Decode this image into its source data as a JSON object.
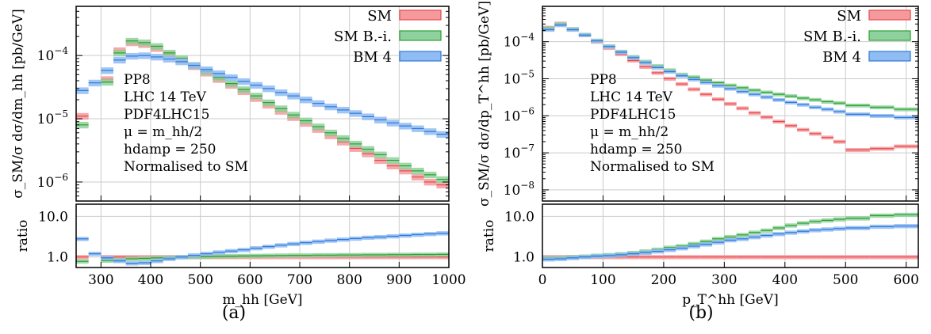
{
  "charts": [
    {
      "id": "a",
      "caption": "(a)",
      "type": "histogram-ratio",
      "xlabel": "m_hh [GeV]",
      "ylabel": "σ_SM/σ dσ/dm_hh [pb/GeV]",
      "ratio_ylabel": "ratio",
      "xlim": [
        250,
        1000
      ],
      "ylim": [
        5e-07,
        0.0006
      ],
      "yscale": "log",
      "ratio_ylim": [
        0.55,
        20
      ],
      "ratio_yscale": "log",
      "x_ticks": [
        "300",
        "400",
        "500",
        "600",
        "700",
        "800",
        "900",
        "1000"
      ],
      "x_tick_values": [
        300,
        400,
        500,
        600,
        700,
        800,
        900,
        1000
      ],
      "y_ticks": [
        {
          "v": 0.0001,
          "base": "10",
          "exp": "−4"
        },
        {
          "v": 1e-05,
          "base": "10",
          "exp": "−5"
        },
        {
          "v": 1e-06,
          "base": "10",
          "exp": "−6"
        }
      ],
      "ratio_ticks": [
        {
          "v": 10,
          "label": "10.0"
        },
        {
          "v": 1,
          "label": "1.0"
        }
      ],
      "info": [
        "PP8",
        "LHC 14 TeV",
        "PDF4LHC15",
        "μ = m_hh/2",
        "hdamp = 250",
        "Normalised to SM"
      ],
      "legend": [
        {
          "label": "SM",
          "color": "#e8474c",
          "fill": "#f49a9c"
        },
        {
          "label": "SM B.-i.",
          "color": "#2ca02c",
          "fill": "#8fd19e"
        },
        {
          "label": "BM 4",
          "color": "#2f78d8",
          "fill": "#8fbcf3"
        }
      ],
      "bin_edges": [
        250,
        275,
        300,
        325,
        350,
        375,
        400,
        425,
        450,
        475,
        500,
        525,
        550,
        575,
        600,
        625,
        650,
        675,
        700,
        725,
        750,
        775,
        800,
        825,
        850,
        875,
        900,
        925,
        950,
        975,
        1000
      ],
      "series": [
        {
          "name": "SM",
          "values": [
            1.1e-05,
            0,
            4.2e-05,
            0.00012,
            0.00016,
            0.00015,
            0.00013,
            0.000105,
            8.5e-05,
            6.7e-05,
            5.3e-05,
            4.2e-05,
            3.4e-05,
            2.7e-05,
            2.1e-05,
            1.65e-05,
            1.32e-05,
            1.05e-05,
            8.5e-06,
            6.8e-06,
            5.4e-06,
            4.3e-06,
            3.4e-06,
            2.8e-06,
            2.2e-06,
            1.8e-06,
            1.5e-06,
            1.2e-06,
            1e-06,
            9e-07
          ]
        },
        {
          "name": "SM B.-i.",
          "values": [
            8e-06,
            0,
            3.8e-05,
            0.00011,
            0.00017,
            0.00016,
            0.00014,
            0.00011,
            9e-05,
            7e-05,
            5.6e-05,
            4.5e-05,
            3.6e-05,
            2.9e-05,
            2.3e-05,
            1.8e-05,
            1.45e-05,
            1.15e-05,
            9.3e-06,
            7.5e-06,
            6e-06,
            4.9e-06,
            4e-06,
            3.3e-06,
            2.7e-06,
            2.2e-06,
            1.8e-06,
            1.5e-06,
            1.3e-06,
            1.1e-06
          ]
        },
        {
          "name": "BM 4",
          "values": [
            2.8e-05,
            3.7e-05,
            5.8e-05,
            8.5e-05,
            9.8e-05,
            0.0001,
            9.5e-05,
            8.8e-05,
            8e-05,
            7e-05,
            6e-05,
            5.2e-05,
            4.5e-05,
            3.9e-05,
            3.4e-05,
            3e-05,
            2.6e-05,
            2.3e-05,
            2e-05,
            1.75e-05,
            1.55e-05,
            1.38e-05,
            1.22e-05,
            1.08e-05,
            9.6e-06,
            8.6e-06,
            7.7e-06,
            7e-06,
            6.3e-06,
            5.7e-06
          ]
        }
      ],
      "ratio_series": [
        {
          "name": "SM",
          "values": [
            1,
            0,
            1,
            1,
            1,
            1,
            1,
            1,
            1,
            1,
            1,
            1,
            1,
            1,
            1,
            1,
            1,
            1,
            1,
            1,
            1,
            1,
            1,
            1,
            1,
            1,
            1,
            1,
            1,
            1
          ]
        },
        {
          "name": "SM B.-i.",
          "values": [
            0.78,
            0,
            0.82,
            0.86,
            0.9,
            0.92,
            0.95,
            0.97,
            0.99,
            1.0,
            1.02,
            1.04,
            1.05,
            1.06,
            1.07,
            1.08,
            1.09,
            1.1,
            1.1,
            1.11,
            1.11,
            1.12,
            1.12,
            1.13,
            1.13,
            1.14,
            1.14,
            1.15,
            1.15,
            1.16
          ]
        },
        {
          "name": "BM 4",
          "values": [
            2.8,
            1.2,
            0.95,
            0.8,
            0.7,
            0.72,
            0.8,
            0.9,
            1.0,
            1.1,
            1.2,
            1.3,
            1.4,
            1.5,
            1.65,
            1.8,
            1.95,
            2.1,
            2.25,
            2.4,
            2.55,
            2.7,
            2.85,
            3.0,
            3.1,
            3.25,
            3.4,
            3.55,
            3.7,
            3.85
          ]
        }
      ]
    },
    {
      "id": "b",
      "caption": "(b)",
      "type": "histogram-ratio",
      "xlabel": "p_T^hh [GeV]",
      "ylabel": "σ_SM/σ dσ/dp_T^hh [pb/GeV]",
      "ratio_ylabel": "ratio",
      "xlim": [
        0,
        620
      ],
      "ylim": [
        5e-09,
        0.0009
      ],
      "yscale": "log",
      "ratio_ylim": [
        0.55,
        20
      ],
      "ratio_yscale": "log",
      "x_ticks": [
        "0",
        "100",
        "200",
        "300",
        "400",
        "500",
        "600"
      ],
      "x_tick_values": [
        0,
        100,
        200,
        300,
        400,
        500,
        600
      ],
      "y_ticks": [
        {
          "v": 0.0001,
          "base": "10",
          "exp": "−4"
        },
        {
          "v": 1e-05,
          "base": "10",
          "exp": "−5"
        },
        {
          "v": 1e-06,
          "base": "10",
          "exp": "−6"
        },
        {
          "v": 1e-07,
          "base": "10",
          "exp": "−7"
        },
        {
          "v": 1e-08,
          "base": "10",
          "exp": "−8"
        }
      ],
      "ratio_ticks": [
        {
          "v": 10,
          "label": "10.0"
        },
        {
          "v": 1,
          "label": "1.0"
        }
      ],
      "info": [
        "PP8",
        "LHC 14 TeV",
        "PDF4LHC15",
        "μ = m_hh/2",
        "hdamp = 250",
        "Normalised to SM"
      ],
      "legend": [
        {
          "label": "SM",
          "color": "#e8474c",
          "fill": "#f49a9c"
        },
        {
          "label": "SM B.-i.",
          "color": "#2ca02c",
          "fill": "#8fd19e"
        },
        {
          "label": "BM 4",
          "color": "#2f78d8",
          "fill": "#8fbcf3"
        }
      ],
      "bin_edges": [
        0,
        20,
        40,
        60,
        80,
        100,
        120,
        140,
        160,
        180,
        200,
        220,
        240,
        260,
        280,
        300,
        320,
        340,
        360,
        380,
        400,
        420,
        440,
        460,
        480,
        500,
        540,
        580,
        620
      ],
      "series": [
        {
          "name": "SM",
          "values": [
            0.00024,
            0.00031,
            0.00022,
            0.00015,
            0.0001,
            6.8e-05,
            4.6e-05,
            3.1e-05,
            2.1e-05,
            1.45e-05,
            1e-05,
            7.2e-06,
            5.2e-06,
            3.8e-06,
            2.8e-06,
            2.1e-06,
            1.6e-06,
            1.2e-06,
            9.2e-07,
            7e-07,
            5.4e-07,
            4.2e-07,
            3.3e-07,
            2.6e-07,
            2e-07,
            1.2e-07,
            1.3e-07,
            1.5e-07
          ]
        },
        {
          "name": "SM B.-i.",
          "values": [
            0.00023,
            0.0003,
            0.00022,
            0.000155,
            0.000108,
            7.6e-05,
            5.4e-05,
            3.9e-05,
            2.9e-05,
            2.2e-05,
            1.7e-05,
            1.3e-05,
            1.1e-05,
            9.2e-06,
            7.8e-06,
            6.6e-06,
            5.7e-06,
            4.9e-06,
            4.3e-06,
            3.8e-06,
            3.4e-06,
            3e-06,
            2.7e-06,
            2.4e-06,
            2.2e-06,
            1.9e-06,
            1.7e-06,
            1.5e-06
          ]
        },
        {
          "name": "BM 4",
          "values": [
            0.00021,
            0.00028,
            0.00021,
            0.00015,
            0.000105,
            7.4e-05,
            5.2e-05,
            3.7e-05,
            2.7e-05,
            2e-05,
            1.55e-05,
            1.2e-05,
            9.6e-06,
            7.9e-06,
            6.5e-06,
            5.4e-06,
            4.5e-06,
            3.8e-06,
            3.2e-06,
            2.7e-06,
            2.3e-06,
            2e-06,
            1.7e-06,
            1.5e-06,
            1.3e-06,
            1.1e-06,
            1e-06,
            9e-07
          ]
        }
      ],
      "ratio_series": [
        {
          "name": "SM",
          "values": [
            1,
            1,
            1,
            1,
            1,
            1,
            1,
            1,
            1,
            1,
            1,
            1,
            1,
            1,
            1,
            1,
            1,
            1,
            1,
            1,
            1,
            1,
            1,
            1,
            1,
            1,
            1,
            1
          ]
        },
        {
          "name": "SM B.-i.",
          "values": [
            0.95,
            0.96,
            1.0,
            1.03,
            1.08,
            1.12,
            1.18,
            1.26,
            1.38,
            1.52,
            1.7,
            1.85,
            2.1,
            2.4,
            2.8,
            3.1,
            3.5,
            4.0,
            4.5,
            5.2,
            6.0,
            6.8,
            7.5,
            8.0,
            8.5,
            9.0,
            10.5,
            11.0
          ]
        },
        {
          "name": "BM 4",
          "values": [
            0.88,
            0.9,
            0.95,
            1.0,
            1.05,
            1.08,
            1.13,
            1.2,
            1.28,
            1.38,
            1.5,
            1.65,
            1.85,
            2.05,
            2.3,
            2.6,
            2.8,
            3.1,
            3.4,
            3.7,
            4.0,
            4.3,
            4.6,
            4.8,
            5.0,
            5.2,
            5.6,
            5.8
          ]
        }
      ]
    }
  ]
}
